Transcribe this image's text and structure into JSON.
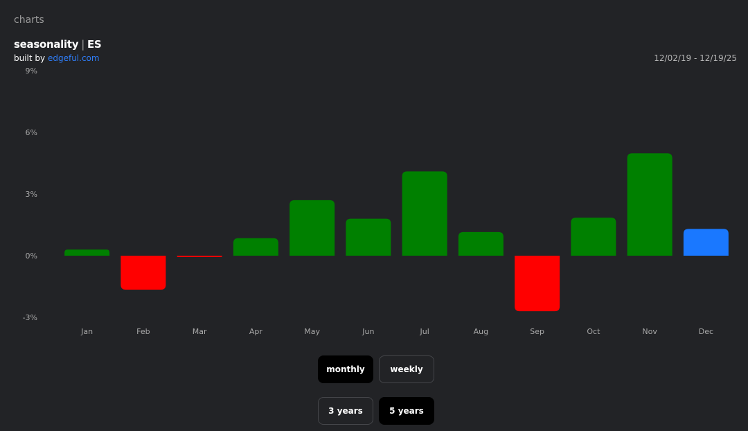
{
  "header": {
    "section_label": "charts",
    "title_main": "seasonality",
    "title_sep": "|",
    "title_symbol": "ES",
    "byline_prefix": "built by",
    "byline_link": "edgeful.com",
    "date_range": "12/02/19 - 12/19/25"
  },
  "colors": {
    "positive": "#008000",
    "negative": "#ff0000",
    "current": "#1a78ff",
    "background": "#222326"
  },
  "chart_data": {
    "type": "bar",
    "title": "",
    "xlabel": "",
    "ylabel": "",
    "categories": [
      "Jan",
      "Feb",
      "Mar",
      "Apr",
      "May",
      "Jun",
      "Jul",
      "Aug",
      "Sep",
      "Oct",
      "Nov",
      "Dec"
    ],
    "values": [
      0.3,
      -1.65,
      -0.05,
      0.85,
      2.7,
      1.8,
      4.1,
      1.15,
      -2.7,
      1.85,
      4.98,
      1.3
    ],
    "highlight_index": 11,
    "yticks": [
      "9%",
      "6%",
      "3%",
      "0%",
      "-3%"
    ],
    "ytick_values": [
      9,
      6,
      3,
      0,
      -3
    ],
    "ylim": [
      -3,
      9
    ],
    "grid": false,
    "legend": "none"
  },
  "controls": {
    "period": {
      "monthly_label": "monthly",
      "weekly_label": "weekly",
      "selected": "monthly"
    },
    "range": {
      "three_years_label": "3 years",
      "five_years_label": "5 years",
      "selected": "5 years"
    }
  }
}
